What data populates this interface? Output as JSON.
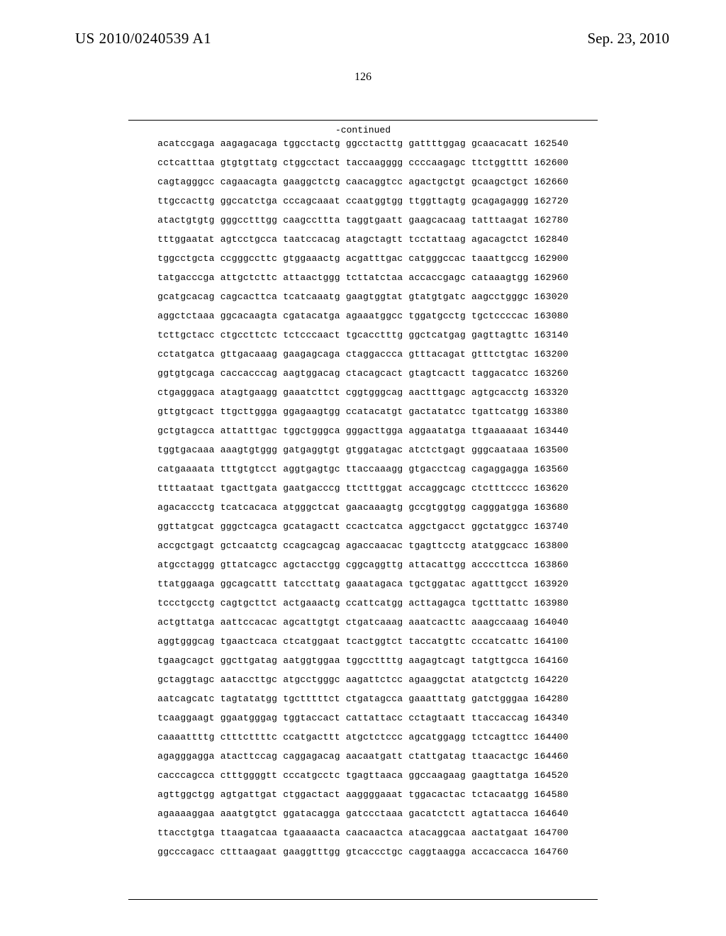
{
  "header": {
    "publication_number": "US 2010/0240539 A1",
    "publication_date": "Sep. 23, 2010",
    "page_number": "126",
    "continued_label": "-continued"
  },
  "sequence": {
    "font_family": "Courier New",
    "font_size_pt": 10,
    "group_gap_spaces": 1,
    "pos_gap_spaces": 1,
    "lines": [
      {
        "groups": [
          "acatccgaga",
          "aagagacaga",
          "tggcctactg",
          "ggcctacttg",
          "gattttggag",
          "gcaacacatt"
        ],
        "pos": "162540"
      },
      {
        "groups": [
          "cctcatttaa",
          "gtgtgttatg",
          "ctggcctact",
          "taccaagggg",
          "ccccaagagc",
          "ttctggtttt"
        ],
        "pos": "162600"
      },
      {
        "groups": [
          "cagtagggcc",
          "cagaacagta",
          "gaaggctctg",
          "caacaggtcc",
          "agactgctgt",
          "gcaagctgct"
        ],
        "pos": "162660"
      },
      {
        "groups": [
          "ttgccacttg",
          "ggccatctga",
          "cccagcaaat",
          "ccaatggtgg",
          "ttggttagtg",
          "gcagagaggg"
        ],
        "pos": "162720"
      },
      {
        "groups": [
          "atactgtgtg",
          "gggcctttgg",
          "caagccttta",
          "taggtgaatt",
          "gaagcacaag",
          "tatttaagat"
        ],
        "pos": "162780"
      },
      {
        "groups": [
          "tttggaatat",
          "agtcctgcca",
          "taatccacag",
          "atagctagtt",
          "tcctattaag",
          "agacagctct"
        ],
        "pos": "162840"
      },
      {
        "groups": [
          "tggcctgcta",
          "ccgggccttc",
          "gtggaaactg",
          "acgatttgac",
          "catgggccac",
          "taaattgccg"
        ],
        "pos": "162900"
      },
      {
        "groups": [
          "tatgacccga",
          "attgctcttc",
          "attaactggg",
          "tcttatctaa",
          "accaccgagc",
          "cataaagtgg"
        ],
        "pos": "162960"
      },
      {
        "groups": [
          "gcatgcacag",
          "cagcacttca",
          "tcatcaaatg",
          "gaagtggtat",
          "gtatgtgatc",
          "aagcctgggc"
        ],
        "pos": "163020"
      },
      {
        "groups": [
          "aggctctaaa",
          "ggcacaagta",
          "cgatacatga",
          "agaaatggcc",
          "tggatgcctg",
          "tgctccccac"
        ],
        "pos": "163080"
      },
      {
        "groups": [
          "tcttgctacc",
          "ctgccttctc",
          "tctcccaact",
          "tgcacctttg",
          "ggctcatgag",
          "gagttagttc"
        ],
        "pos": "163140"
      },
      {
        "groups": [
          "cctatgatca",
          "gttgacaaag",
          "gaagagcaga",
          "ctaggaccca",
          "gtttacagat",
          "gtttctgtac"
        ],
        "pos": "163200"
      },
      {
        "groups": [
          "ggtgtgcaga",
          "caccacccag",
          "aagtggacag",
          "ctacagcact",
          "gtagtcactt",
          "taggacatcc"
        ],
        "pos": "163260"
      },
      {
        "groups": [
          "ctgagggaca",
          "atagtgaagg",
          "gaaatcttct",
          "cggtgggcag",
          "aactttgagc",
          "agtgcacctg"
        ],
        "pos": "163320"
      },
      {
        "groups": [
          "gttgtgcact",
          "ttgcttggga",
          "ggagaagtgg",
          "ccatacatgt",
          "gactatatcc",
          "tgattcatgg"
        ],
        "pos": "163380"
      },
      {
        "groups": [
          "gctgtagcca",
          "attatttgac",
          "tggctgggca",
          "gggacttgga",
          "aggaatatga",
          "ttgaaaaaat"
        ],
        "pos": "163440"
      },
      {
        "groups": [
          "tggtgacaaa",
          "aaagtgtggg",
          "gatgaggtgt",
          "gtggatagac",
          "atctctgagt",
          "gggcaataaa"
        ],
        "pos": "163500"
      },
      {
        "groups": [
          "catgaaaata",
          "tttgtgtcct",
          "aggtgagtgc",
          "ttaccaaagg",
          "gtgacctcag",
          "cagaggagga"
        ],
        "pos": "163560"
      },
      {
        "groups": [
          "ttttaataat",
          "tgacttgata",
          "gaatgacccg",
          "ttctttggat",
          "accaggcagc",
          "ctctttcccc"
        ],
        "pos": "163620"
      },
      {
        "groups": [
          "agacaccctg",
          "tcatcacaca",
          "atgggctcat",
          "gaacaaagtg",
          "gccgtggtgg",
          "cagggatgga"
        ],
        "pos": "163680"
      },
      {
        "groups": [
          "ggttatgcat",
          "gggctcagca",
          "gcatagactt",
          "ccactcatca",
          "aggctgacct",
          "ggctatggcc"
        ],
        "pos": "163740"
      },
      {
        "groups": [
          "accgctgagt",
          "gctcaatctg",
          "ccagcagcag",
          "agaccaacac",
          "tgagttcctg",
          "atatggcacc"
        ],
        "pos": "163800"
      },
      {
        "groups": [
          "atgcctaggg",
          "gttatcagcc",
          "agctacctgg",
          "cggcaggttg",
          "attacattgg",
          "accccttcca"
        ],
        "pos": "163860"
      },
      {
        "groups": [
          "ttatggaaga",
          "ggcagcattt",
          "tatccttatg",
          "gaaatagaca",
          "tgctggatac",
          "agatttgcct"
        ],
        "pos": "163920"
      },
      {
        "groups": [
          "tccctgcctg",
          "cagtgcttct",
          "actgaaactg",
          "ccattcatgg",
          "acttagagca",
          "tgctttattc"
        ],
        "pos": "163980"
      },
      {
        "groups": [
          "actgttatga",
          "aattccacac",
          "agcattgtgt",
          "ctgatcaaag",
          "aaatcacttc",
          "aaagccaaag"
        ],
        "pos": "164040"
      },
      {
        "groups": [
          "aggtgggcag",
          "tgaactcaca",
          "ctcatggaat",
          "tcactggtct",
          "taccatgttc",
          "cccatcattc"
        ],
        "pos": "164100"
      },
      {
        "groups": [
          "tgaagcagct",
          "ggcttgatag",
          "aatggtggaa",
          "tggccttttg",
          "aagagtcagt",
          "tatgttgcca"
        ],
        "pos": "164160"
      },
      {
        "groups": [
          "gctaggtagc",
          "aataccttgc",
          "atgcctgggc",
          "aagattctcc",
          "agaaggctat",
          "atatgctctg"
        ],
        "pos": "164220"
      },
      {
        "groups": [
          "aatcagcatc",
          "tagtatatgg",
          "tgctttttct",
          "ctgatagcca",
          "gaaatttatg",
          "gatctgggaa"
        ],
        "pos": "164280"
      },
      {
        "groups": [
          "tcaaggaagt",
          "ggaatgggag",
          "tggtaccact",
          "cattattacc",
          "cctagtaatt",
          "ttaccaccag"
        ],
        "pos": "164340"
      },
      {
        "groups": [
          "caaaattttg",
          "ctttcttttc",
          "ccatgacttt",
          "atgctctccc",
          "agcatggagg",
          "tctcagttcc"
        ],
        "pos": "164400"
      },
      {
        "groups": [
          "agagggagga",
          "atacttccag",
          "caggagacag",
          "aacaatgatt",
          "ctattgatag",
          "ttaacactgc"
        ],
        "pos": "164460"
      },
      {
        "groups": [
          "cacccagcca",
          "ctttggggtt",
          "cccatgcctc",
          "tgagttaaca",
          "ggccaagaag",
          "gaagttatga"
        ],
        "pos": "164520"
      },
      {
        "groups": [
          "agttggctgg",
          "agtgattgat",
          "ctggactact",
          "aaggggaaat",
          "tggacactac",
          "tctacaatgg"
        ],
        "pos": "164580"
      },
      {
        "groups": [
          "agaaaaggaa",
          "aaatgtgtct",
          "ggatacagga",
          "gatccctaaa",
          "gacatctctt",
          "agtattacca"
        ],
        "pos": "164640"
      },
      {
        "groups": [
          "ttacctgtga",
          "ttaagatcaa",
          "tgaaaaacta",
          "caacaactca",
          "atacaggcaa",
          "aactatgaat"
        ],
        "pos": "164700"
      },
      {
        "groups": [
          "ggcccagacc",
          "ctttaagaat",
          "gaaggtttgg",
          "gtcaccctgc",
          "caggtaagga",
          "accaccacca"
        ],
        "pos": "164760"
      }
    ]
  }
}
